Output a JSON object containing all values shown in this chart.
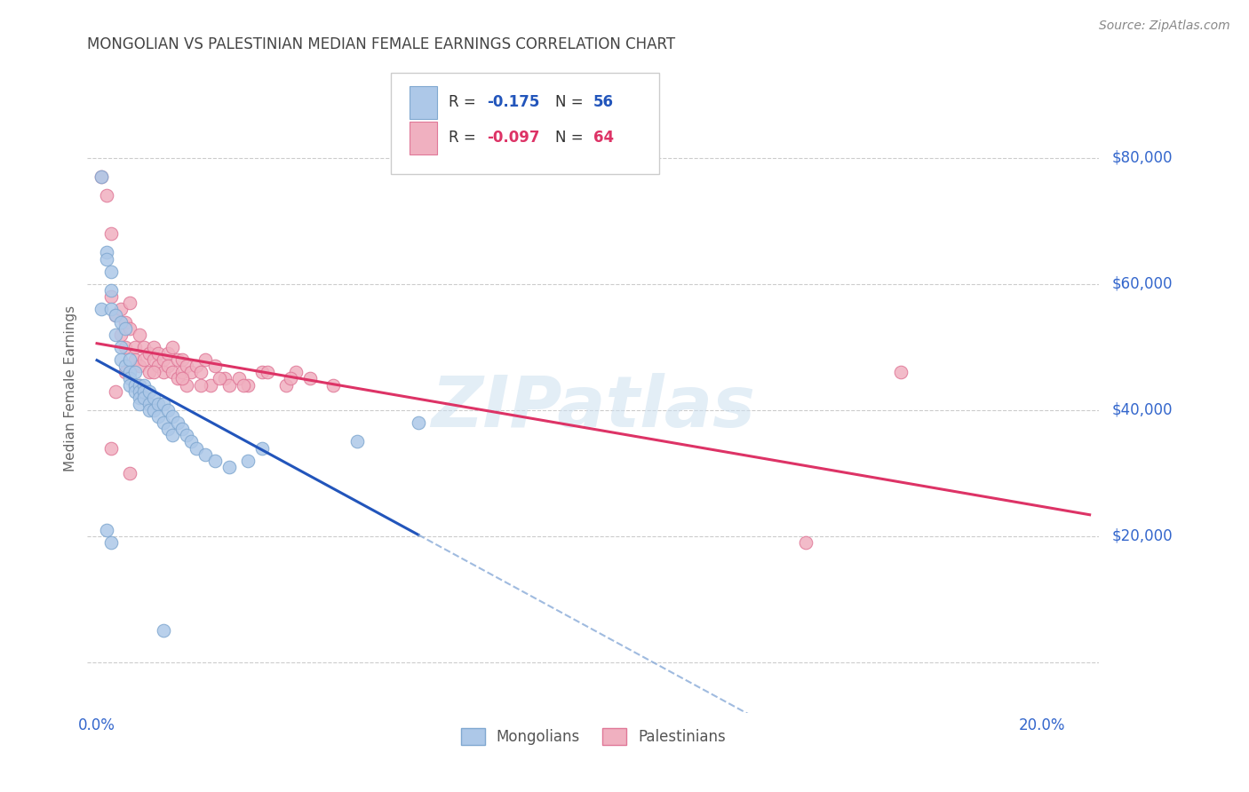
{
  "title": "MONGOLIAN VS PALESTINIAN MEDIAN FEMALE EARNINGS CORRELATION CHART",
  "source": "Source: ZipAtlas.com",
  "ylabel": "Median Female Earnings",
  "y_ticks": [
    0,
    20000,
    40000,
    60000,
    80000
  ],
  "y_tick_labels": [
    "",
    "$20,000",
    "$40,000",
    "$60,000",
    "$80,000"
  ],
  "x_ticks": [
    0.0,
    0.05,
    0.1,
    0.15,
    0.2
  ],
  "x_tick_labels": [
    "0.0%",
    "",
    "",
    "",
    "20.0%"
  ],
  "xlim": [
    -0.002,
    0.212
  ],
  "ylim": [
    -8000,
    95000
  ],
  "mongolian_color": "#adc8e8",
  "mongolian_edge": "#80a8d0",
  "palestinian_color": "#f0b0c0",
  "palestinian_edge": "#e07898",
  "mongolian_line_color": "#2255bb",
  "mongolian_line_color_dashed": "#88aad8",
  "palestinian_line_color": "#dd3366",
  "mongolian_R": "-0.175",
  "mongolian_N": "56",
  "palestinian_R": "-0.097",
  "palestinian_N": "64",
  "watermark": "ZIPatlas",
  "background_color": "#ffffff",
  "grid_color": "#cccccc",
  "title_color": "#333333",
  "axis_color": "#3366cc",
  "mongolian_x": [
    0.001,
    0.001,
    0.002,
    0.002,
    0.003,
    0.003,
    0.003,
    0.004,
    0.004,
    0.005,
    0.005,
    0.005,
    0.006,
    0.006,
    0.007,
    0.007,
    0.007,
    0.007,
    0.008,
    0.008,
    0.008,
    0.009,
    0.009,
    0.009,
    0.009,
    0.01,
    0.01,
    0.01,
    0.011,
    0.011,
    0.011,
    0.012,
    0.012,
    0.013,
    0.013,
    0.014,
    0.014,
    0.015,
    0.015,
    0.016,
    0.016,
    0.017,
    0.018,
    0.019,
    0.02,
    0.021,
    0.023,
    0.025,
    0.028,
    0.032,
    0.003,
    0.002,
    0.035,
    0.055,
    0.068,
    0.014
  ],
  "mongolian_y": [
    77000,
    56000,
    65000,
    64000,
    62000,
    59000,
    56000,
    55000,
    52000,
    54000,
    50000,
    48000,
    53000,
    47000,
    48000,
    46000,
    45000,
    44000,
    46000,
    44000,
    43000,
    44000,
    43000,
    42000,
    41000,
    44000,
    43000,
    42000,
    43000,
    41000,
    40000,
    42000,
    40000,
    41000,
    39000,
    41000,
    38000,
    40000,
    37000,
    39000,
    36000,
    38000,
    37000,
    36000,
    35000,
    34000,
    33000,
    32000,
    31000,
    32000,
    19000,
    21000,
    34000,
    35000,
    38000,
    5000
  ],
  "palestinian_x": [
    0.001,
    0.002,
    0.003,
    0.003,
    0.004,
    0.005,
    0.005,
    0.006,
    0.006,
    0.007,
    0.007,
    0.008,
    0.008,
    0.009,
    0.009,
    0.01,
    0.01,
    0.011,
    0.011,
    0.012,
    0.012,
    0.013,
    0.013,
    0.014,
    0.014,
    0.015,
    0.015,
    0.016,
    0.016,
    0.017,
    0.017,
    0.018,
    0.018,
    0.019,
    0.019,
    0.02,
    0.021,
    0.022,
    0.023,
    0.024,
    0.025,
    0.027,
    0.028,
    0.03,
    0.032,
    0.035,
    0.04,
    0.042,
    0.045,
    0.05,
    0.004,
    0.006,
    0.009,
    0.012,
    0.018,
    0.022,
    0.026,
    0.031,
    0.036,
    0.041,
    0.003,
    0.007,
    0.15,
    0.17
  ],
  "palestinian_y": [
    77000,
    74000,
    58000,
    68000,
    55000,
    56000,
    52000,
    54000,
    50000,
    57000,
    53000,
    50000,
    48000,
    52000,
    47000,
    50000,
    48000,
    49000,
    46000,
    50000,
    48000,
    49000,
    47000,
    48000,
    46000,
    49000,
    47000,
    50000,
    46000,
    48000,
    45000,
    48000,
    46000,
    47000,
    44000,
    46000,
    47000,
    46000,
    48000,
    44000,
    47000,
    45000,
    44000,
    45000,
    44000,
    46000,
    44000,
    46000,
    45000,
    44000,
    43000,
    46000,
    44000,
    46000,
    45000,
    44000,
    45000,
    44000,
    46000,
    45000,
    34000,
    30000,
    19000,
    46000
  ]
}
